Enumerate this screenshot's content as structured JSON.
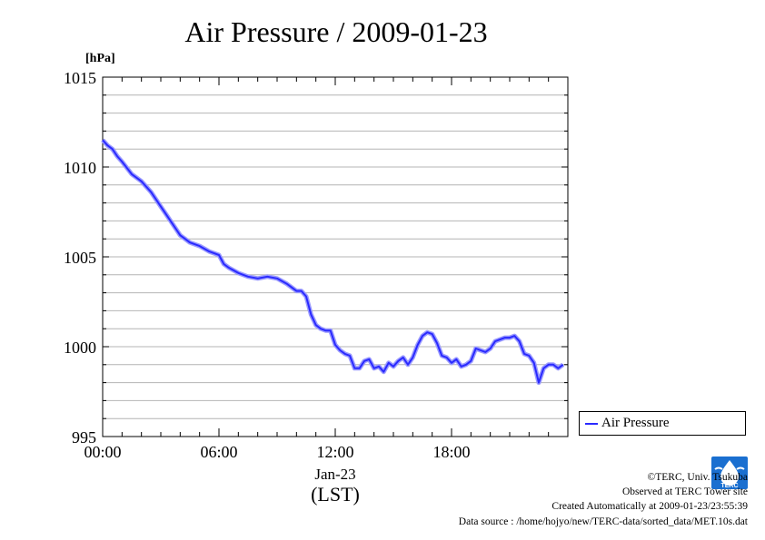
{
  "chart_data": {
    "type": "line",
    "title": "Air Pressure / 2009-01-23",
    "ylabel": "[hPa]",
    "xlabel": "(LST)",
    "date_label": "Jan-23",
    "x_unit": "hour",
    "xlim": [
      0,
      24
    ],
    "ylim": [
      995,
      1015
    ],
    "y_ticks": [
      1015,
      1010,
      1005,
      1000,
      995
    ],
    "x_ticks": [
      {
        "x": 0,
        "label": "00:00"
      },
      {
        "x": 6,
        "label": "06:00"
      },
      {
        "x": 12,
        "label": "12:00"
      },
      {
        "x": 18,
        "label": "18:00"
      }
    ],
    "grid": true,
    "legend_position": "right",
    "series": [
      {
        "name": "Air Pressure",
        "color": "#2a2aff",
        "x": [
          0,
          0.25,
          0.5,
          0.75,
          1,
          1.5,
          2,
          2.5,
          3,
          3.5,
          4,
          4.25,
          4.5,
          5,
          5.5,
          6,
          6.25,
          6.5,
          7,
          7.5,
          8,
          8.5,
          9,
          9.5,
          10,
          10.25,
          10.5,
          10.75,
          11,
          11.25,
          11.5,
          11.75,
          12,
          12.25,
          12.5,
          12.75,
          13,
          13.25,
          13.5,
          13.75,
          14,
          14.25,
          14.5,
          14.75,
          15,
          15.25,
          15.5,
          15.75,
          16,
          16.25,
          16.5,
          16.75,
          17,
          17.25,
          17.5,
          17.75,
          18,
          18.25,
          18.5,
          18.75,
          19,
          19.25,
          19.5,
          19.75,
          20,
          20.25,
          20.5,
          20.75,
          21,
          21.25,
          21.5,
          21.75,
          22,
          22.25,
          22.5,
          22.75,
          23,
          23.25,
          23.5,
          23.75
        ],
        "values": [
          1011.5,
          1011.2,
          1011.0,
          1010.6,
          1010.3,
          1009.6,
          1009.2,
          1008.6,
          1007.8,
          1007.0,
          1006.2,
          1006.0,
          1005.8,
          1005.6,
          1005.3,
          1005.1,
          1004.6,
          1004.4,
          1004.1,
          1003.9,
          1003.8,
          1003.9,
          1003.8,
          1003.5,
          1003.1,
          1003.1,
          1002.8,
          1001.8,
          1001.2,
          1001.0,
          1000.9,
          1000.9,
          1000.1,
          999.8,
          999.6,
          999.5,
          998.8,
          998.8,
          999.2,
          999.3,
          998.8,
          998.9,
          998.6,
          999.1,
          998.9,
          999.2,
          999.4,
          999.0,
          999.4,
          1000.1,
          1000.6,
          1000.8,
          1000.7,
          1000.2,
          999.5,
          999.4,
          999.1,
          999.3,
          998.9,
          999.0,
          999.2,
          999.9,
          999.8,
          999.7,
          999.9,
          1000.3,
          1000.4,
          1000.5,
          1000.5,
          1000.6,
          1000.3,
          999.6,
          999.5,
          999.1,
          998.0,
          998.8,
          999.0,
          999.0,
          998.8,
          999.0
        ]
      }
    ]
  },
  "credits": {
    "copyright": "©TERC, Univ. Tsukuba",
    "observed": "Observed at TERC Tower site",
    "created": "Created Automatically at 2009-01-23/23:55:39",
    "source": "Data source : /home/hojyo/new/TERC-data/sorted_data/MET.10s.dat"
  },
  "logo": {
    "text": "TERC",
    "color": "#1a6fd0"
  }
}
